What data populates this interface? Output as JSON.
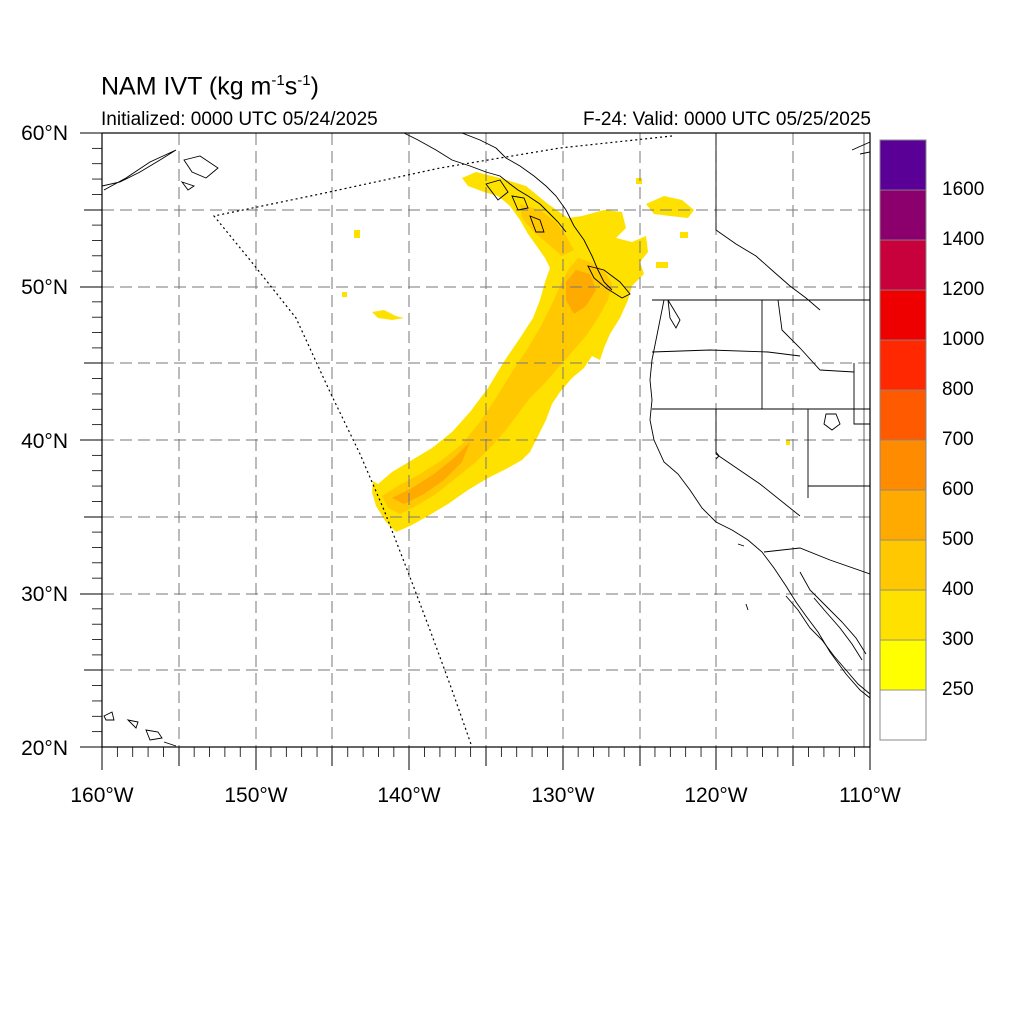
{
  "title": {
    "main": "NAM IVT (kg m",
    "sup1": "-1",
    "mid": "s",
    "sup2": "-1",
    "end": ")"
  },
  "subtitle_left": "Initialized: 0000 UTC 05/24/2025",
  "subtitle_right": "F-24: Valid: 0000 UTC 05/25/2025",
  "map": {
    "lon_range": [
      -160,
      -110
    ],
    "lat_range": [
      20,
      60
    ],
    "lat_labels": [
      "60°N",
      "50°N",
      "40°N",
      "30°N",
      "20°N"
    ],
    "lon_labels": [
      "160°W",
      "150°W",
      "140°W",
      "130°W",
      "120°W",
      "110°W"
    ],
    "grid": true,
    "field": "Integrated vapor transport"
  },
  "colorbar": {
    "levels": [
      "250",
      "300",
      "400",
      "500",
      "600",
      "700",
      "800",
      "1000",
      "1200",
      "1400",
      "1600"
    ],
    "colors": [
      "#ffffff",
      "#ffff00",
      "#ffe100",
      "#ffc800",
      "#ffaa00",
      "#ff8c00",
      "#ff5a00",
      "#ff2800",
      "#ee0000",
      "#c8003c",
      "#8c006e",
      "#5a0096"
    ]
  }
}
